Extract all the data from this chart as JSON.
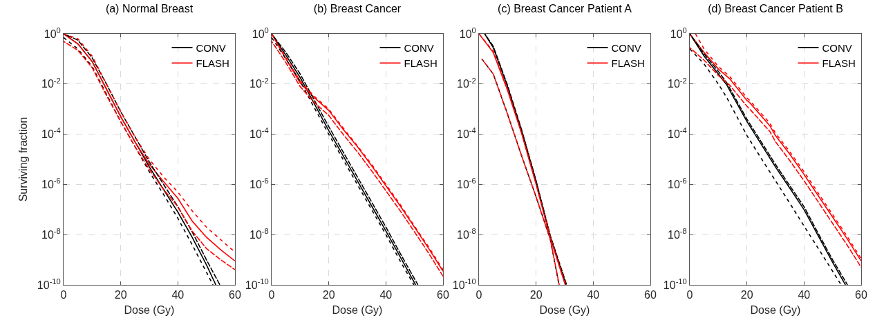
{
  "chart_data": [
    {
      "type": "line",
      "title": "(a) Normal Breast",
      "xlabel": "Dose (Gy)",
      "ylabel": "Surviving fraction",
      "log": "y",
      "grid": true,
      "legend": "top right",
      "xlim": [
        0,
        60
      ],
      "xticks": [
        0,
        20,
        40,
        60
      ],
      "ylim": [
        1e-10,
        1
      ],
      "yticks": [
        {
          "value": 1,
          "label": "10$^{0}$"
        },
        {
          "value": 0.01,
          "label": "10$^{-2}$"
        },
        {
          "value": 0.0001,
          "label": "10$^{-4}$"
        },
        {
          "value": 1e-06,
          "label": "10$^{-6}$"
        },
        {
          "value": 1e-08,
          "label": "10$^{-8}$"
        },
        {
          "value": 1e-10,
          "label": "10$^{-10}$"
        }
      ],
      "series": [
        {
          "name": "CONV",
          "color": "#000000",
          "x": [
            0,
            5,
            10,
            15,
            20,
            25,
            30,
            35,
            40,
            45,
            50,
            53.3
          ],
          "values": [
            1,
            0.4,
            0.079,
            0.0063,
            0.0005,
            5e-05,
            5e-06,
            6.3e-07,
            7.9e-08,
            7.9e-09,
            6.3e-10,
            1e-10
          ]
        },
        {
          "name": "FLASH",
          "color": "#ff0000",
          "x": [
            0,
            5,
            10,
            15,
            20,
            25,
            30,
            35,
            40,
            45,
            50,
            55,
            60
          ],
          "values": [
            1,
            0.4,
            0.079,
            0.0063,
            0.0005,
            5e-05,
            6.3e-06,
            1.3e-06,
            2.8e-07,
            3.5e-08,
            7.9e-09,
            2.5e-09,
            8.9e-10
          ]
        },
        {
          "color": "#000000",
          "line_style": "dashed",
          "x": [
            0,
            5,
            10,
            15,
            20,
            25,
            30,
            35,
            40,
            45,
            50,
            52.3
          ],
          "values": [
            0.71,
            0.25,
            0.05,
            0.004,
            0.00032,
            3.2e-05,
            3.2e-06,
            4e-07,
            4.5e-08,
            4e-09,
            3.2e-10,
            1e-10
          ]
        },
        {
          "color": "#000000",
          "line_style": "dashed",
          "x": [
            0,
            5,
            10,
            15,
            20,
            25,
            30,
            35,
            40,
            45,
            50,
            54.7
          ],
          "values": [
            1,
            0.56,
            0.11,
            0.01,
            0.00079,
            7.9e-05,
            7.9e-06,
            1e-06,
            1.3e-07,
            1.3e-08,
            1e-09,
            1e-10
          ]
        },
        {
          "color": "#ff0000",
          "line_style": "dashed",
          "x": [
            0,
            5,
            10,
            15,
            20,
            25,
            30,
            35,
            40,
            45,
            50,
            55,
            60
          ],
          "values": [
            1,
            0.63,
            0.13,
            0.01,
            0.00079,
            7.9e-05,
            1e-05,
            2e-06,
            5e-07,
            8.9e-08,
            2e-08,
            6.3e-09,
            2e-09
          ]
        },
        {
          "color": "#ff0000",
          "line_style": "dashed",
          "x": [
            0,
            5,
            10,
            15,
            20,
            25,
            30,
            35,
            40,
            45,
            50,
            55,
            60
          ],
          "values": [
            0.5,
            0.22,
            0.045,
            0.0035,
            0.00032,
            3.2e-05,
            4e-06,
            6.3e-07,
            1.3e-07,
            1.4e-08,
            2.8e-09,
            1e-09,
            4e-10
          ]
        }
      ]
    },
    {
      "type": "line",
      "title": "(b) Breast Cancer",
      "xlabel": "Dose (Gy)",
      "log": "y",
      "grid": true,
      "legend": "top right",
      "xlim": [
        0,
        60
      ],
      "xticks": [
        0,
        20,
        40,
        60
      ],
      "ylim": [
        1e-10,
        1
      ],
      "yticks": [
        {
          "value": 1,
          "label": "10$^{0}$"
        },
        {
          "value": 0.01,
          "label": "10$^{-2}$"
        },
        {
          "value": 0.0001,
          "label": "10$^{-4}$"
        },
        {
          "value": 1e-06,
          "label": "10$^{-6}$"
        },
        {
          "value": 1e-08,
          "label": "10$^{-8}$"
        },
        {
          "value": 1e-10,
          "label": "10$^{-10}$"
        }
      ],
      "series": [
        {
          "name": "CONV",
          "color": "#000000",
          "x": [
            0,
            5,
            10,
            15,
            20,
            25,
            30,
            35,
            40,
            45,
            50.4
          ],
          "values": [
            1,
            0.14,
            0.018,
            0.0016,
            0.00014,
            1.4e-05,
            1.4e-06,
            1.4e-07,
            1.4e-08,
            1.3e-09,
            1e-10
          ]
        },
        {
          "name": "FLASH",
          "color": "#ff0000",
          "x": [
            0,
            5,
            10,
            15,
            20,
            25,
            30,
            35,
            40,
            45,
            50,
            55,
            60
          ],
          "values": [
            1,
            0.1,
            0.011,
            0.0028,
            0.00089,
            0.00016,
            3.2e-05,
            5.6e-06,
            8.9e-07,
            1.4e-07,
            2e-08,
            2.8e-09,
            3.5e-10
          ]
        },
        {
          "color": "#000000",
          "line_style": "dashed",
          "x": [
            0,
            5,
            10,
            15,
            20,
            25,
            30,
            35,
            40,
            45,
            49.8
          ],
          "values": [
            0.71,
            0.1,
            0.013,
            0.0011,
            0.0001,
            1e-05,
            1e-06,
            1e-07,
            1e-08,
            8.9e-10,
            1e-10
          ]
        },
        {
          "color": "#000000",
          "line_style": "dashed",
          "x": [
            0,
            5,
            10,
            15,
            20,
            25,
            30,
            35,
            40,
            45,
            51.2
          ],
          "values": [
            1,
            0.18,
            0.025,
            0.0022,
            0.0002,
            2e-05,
            2e-06,
            2e-07,
            2e-08,
            1.8e-09,
            1e-10
          ]
        },
        {
          "color": "#ff0000",
          "line_style": "dashed",
          "x": [
            0,
            5,
            10,
            15,
            20,
            25,
            30,
            35,
            40,
            45,
            50,
            55,
            60
          ],
          "values": [
            1,
            0.11,
            0.013,
            0.0032,
            0.001,
            0.00018,
            3.5e-05,
            6.3e-06,
            1e-06,
            1.6e-07,
            2.2e-08,
            3.2e-09,
            4e-10
          ]
        },
        {
          "color": "#ff0000",
          "line_style": "dashed",
          "x": [
            0,
            5,
            10,
            15,
            20,
            25,
            30,
            35,
            40,
            45,
            50,
            55,
            60
          ],
          "values": [
            0.5,
            0.071,
            0.0079,
            0.0018,
            0.00056,
            0.0001,
            2e-05,
            3.5e-06,
            5.6e-07,
            8.9e-08,
            1.3e-08,
            1.8e-09,
            2.2e-10
          ]
        }
      ]
    },
    {
      "type": "line",
      "title": "(c) Breast Cancer Patient A",
      "xlabel": "Dose (Gy)",
      "log": "y",
      "grid": true,
      "legend": "top right",
      "xlim": [
        0,
        60
      ],
      "xticks": [
        0,
        20,
        40,
        60
      ],
      "ylim": [
        1e-10,
        1
      ],
      "yticks": [
        {
          "value": 1,
          "label": "10$^{0}$"
        },
        {
          "value": 0.01,
          "label": "10$^{-2}$"
        },
        {
          "value": 0.0001,
          "label": "10$^{-4}$"
        },
        {
          "value": 1e-06,
          "label": "10$^{-6}$"
        },
        {
          "value": 1e-08,
          "label": "10$^{-8}$"
        },
        {
          "value": 1e-10,
          "label": "10$^{-10}$"
        }
      ],
      "series": [
        {
          "name": "CONV",
          "color": "#000000",
          "x": [
            2,
            5,
            10,
            15,
            20,
            25,
            30.5
          ],
          "values": [
            1,
            0.28,
            0.0079,
            0.00013,
            1.3e-06,
            7.9e-09,
            1e-10
          ]
        },
        {
          "name": "FLASH",
          "color": "#ff0000",
          "x": [
            0,
            5,
            10,
            15,
            20,
            25,
            30.2
          ],
          "values": [
            1,
            0.18,
            0.0056,
            0.0001,
            1e-06,
            7.1e-09,
            1e-10
          ]
        },
        {
          "color": "#000000",
          "line_style": "dashed",
          "x": [
            1,
            5,
            10,
            15,
            20,
            25,
            28
          ],
          "values": [
            0.1,
            0.025,
            0.00063,
            1.3e-05,
            3.2e-07,
            6.3e-09,
            1e-10
          ]
        },
        {
          "color": "#000000",
          "line_style": "dashed",
          "x": [
            2,
            5,
            10,
            15,
            20,
            25,
            30.7
          ],
          "values": [
            1,
            0.32,
            0.0089,
            0.00014,
            1.4e-06,
            8.9e-09,
            1e-10
          ]
        },
        {
          "color": "#ff0000",
          "line_style": "dashed",
          "x": [
            0,
            5,
            10,
            15,
            20,
            25,
            30.4
          ],
          "values": [
            1,
            0.2,
            0.0063,
            0.00011,
            1.1e-06,
            7.9e-09,
            1e-10
          ]
        },
        {
          "color": "#ff0000",
          "line_style": "dashed",
          "x": [
            1,
            5,
            10,
            15,
            20,
            25,
            28.1
          ],
          "values": [
            0.1,
            0.025,
            0.00063,
            1.3e-05,
            3.2e-07,
            6.3e-09,
            1e-10
          ]
        }
      ]
    },
    {
      "type": "line",
      "title": "(d) Breast Cancer Patient B",
      "xlabel": "Dose (Gy)",
      "log": "y",
      "grid": true,
      "legend": "top right",
      "xlim": [
        0,
        60
      ],
      "xticks": [
        0,
        20,
        40,
        60
      ],
      "ylim": [
        1e-10,
        1
      ],
      "yticks": [
        {
          "value": 1,
          "label": "10$^{0}$"
        },
        {
          "value": 0.01,
          "label": "10$^{-2}$"
        },
        {
          "value": 0.0001,
          "label": "10$^{-4}$"
        },
        {
          "value": 1e-06,
          "label": "10$^{-6}$"
        },
        {
          "value": 1e-08,
          "label": "10$^{-8}$"
        },
        {
          "value": 1e-10,
          "label": "10$^{-10}$"
        }
      ],
      "series": [
        {
          "name": "CONV",
          "color": "#000000",
          "x": [
            0,
            5,
            10,
            13,
            20,
            25,
            30,
            35,
            40,
            45,
            50,
            54.5
          ],
          "values": [
            1,
            0.13,
            0.025,
            0.0089,
            0.00032,
            4e-05,
            5e-06,
            7.1e-07,
            1e-07,
            8.9e-09,
            7.9e-10,
            1e-10
          ]
        },
        {
          "name": "FLASH",
          "color": "#ff0000",
          "x": [
            0,
            5,
            10,
            14,
            20,
            21,
            28,
            30,
            35,
            40,
            45,
            50,
            55,
            60
          ],
          "values": [
            1,
            0.18,
            0.04,
            0.016,
            0.0022,
            0.0018,
            0.00022,
            8.9e-05,
            1.6e-05,
            2.5e-06,
            3.5e-07,
            5e-08,
            7.1e-09,
            8.9e-10
          ]
        },
        {
          "color": "#000000",
          "line_style": "dashed",
          "x": [
            0,
            5,
            10,
            13,
            20,
            25,
            30,
            35,
            40,
            45,
            50,
            53
          ],
          "values": [
            0.25,
            0.063,
            0.01,
            0.0028,
            8.9e-05,
            1.1e-05,
            1.4e-06,
            1.8e-07,
            2.2e-08,
            2.8e-09,
            3.5e-10,
            1e-10
          ]
        },
        {
          "color": "#000000",
          "line_style": "dashed",
          "x": [
            0,
            5,
            10,
            13,
            20,
            25,
            30,
            35,
            40,
            45,
            50,
            55.2
          ],
          "values": [
            1,
            0.16,
            0.032,
            0.011,
            0.0004,
            5e-05,
            6.3e-06,
            8.9e-07,
            1.3e-07,
            1.1e-08,
            1e-09,
            1e-10
          ]
        },
        {
          "color": "#ff0000",
          "line_style": "dashed",
          "x": [
            2,
            5,
            10,
            14,
            20,
            21,
            28,
            30,
            35,
            40,
            45,
            50,
            55,
            60
          ],
          "values": [
            1,
            0.25,
            0.05,
            0.02,
            0.0028,
            0.0022,
            0.00028,
            0.00011,
            2e-05,
            3.2e-06,
            4.5e-07,
            6.3e-08,
            8.9e-09,
            1.1e-09
          ]
        },
        {
          "color": "#ff0000",
          "line_style": "dashed",
          "x": [
            0,
            5,
            10,
            14,
            20,
            21,
            28,
            30,
            35,
            40,
            45,
            50,
            55,
            60
          ],
          "values": [
            0.28,
            0.089,
            0.022,
            0.0089,
            0.0013,
            0.001,
            0.00013,
            5e-05,
            8.9e-06,
            1.4e-06,
            2e-07,
            2.8e-08,
            4e-09,
            5e-10
          ]
        }
      ]
    }
  ]
}
